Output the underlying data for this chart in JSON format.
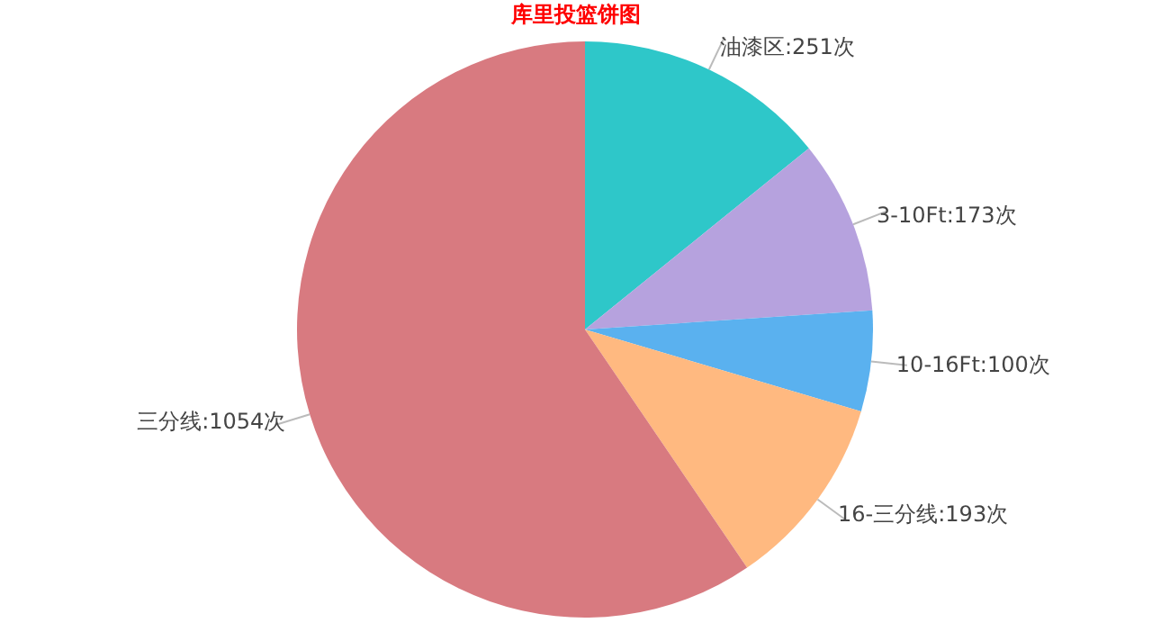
{
  "chart_data": {
    "type": "pie",
    "title": "库里投篮饼图",
    "categories": [
      "油漆区",
      "3-10Ft",
      "10-16Ft",
      "16-三分线",
      "三分线"
    ],
    "values": [
      251,
      173,
      100,
      193,
      1054
    ],
    "value_labels": [
      "251次",
      "173次",
      "100次",
      "193次",
      "1054次"
    ],
    "colors": [
      "#2ec7c9",
      "#b6a2de",
      "#5ab1ef",
      "#ffb980",
      "#d87a80"
    ],
    "legend": false
  }
}
